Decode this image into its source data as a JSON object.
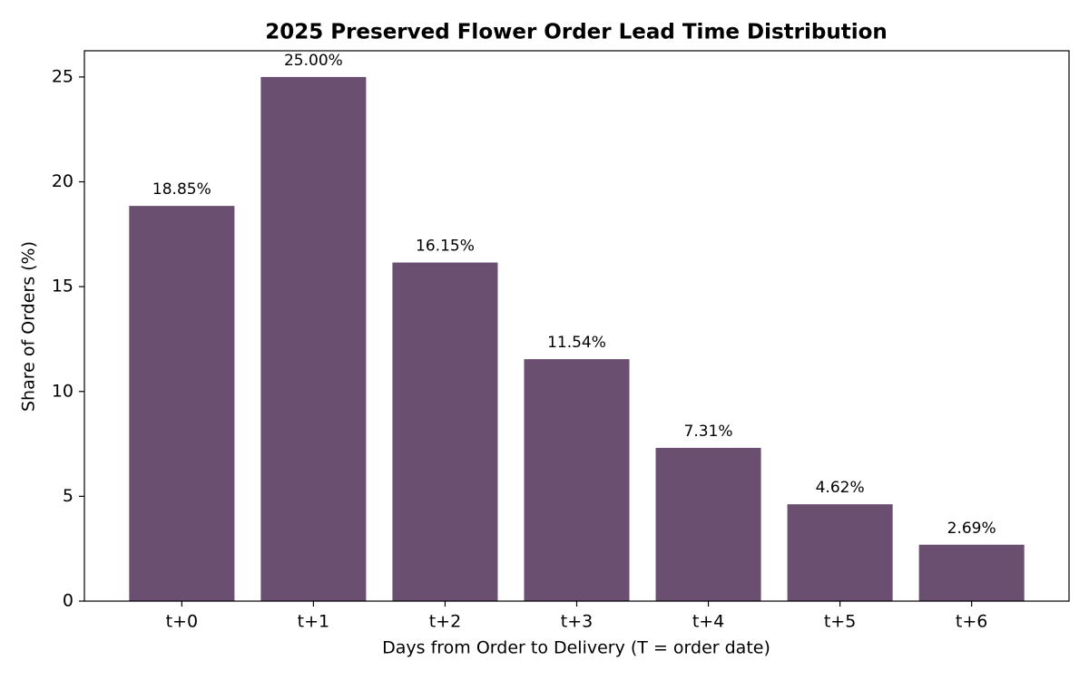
{
  "chart_data": {
    "type": "bar",
    "title": "2025 Preserved Flower Order Lead Time Distribution",
    "x_label": "Days from Order to Delivery (T = order date)",
    "y_label": "Share of Orders (%)",
    "categories": [
      "t+0",
      "t+1",
      "t+2",
      "t+3",
      "t+4",
      "t+5",
      "t+6"
    ],
    "values": [
      18.85,
      25.0,
      16.15,
      11.54,
      7.31,
      4.62,
      2.69
    ],
    "value_labels": [
      "18.85%",
      "25.00%",
      "16.15%",
      "11.54%",
      "7.31%",
      "4.62%",
      "2.69%"
    ],
    "color": "#6b4f70",
    "ylim": [
      0,
      26.25
    ],
    "yticks": [
      0,
      5,
      10,
      15,
      20,
      25
    ],
    "grid": false
  }
}
